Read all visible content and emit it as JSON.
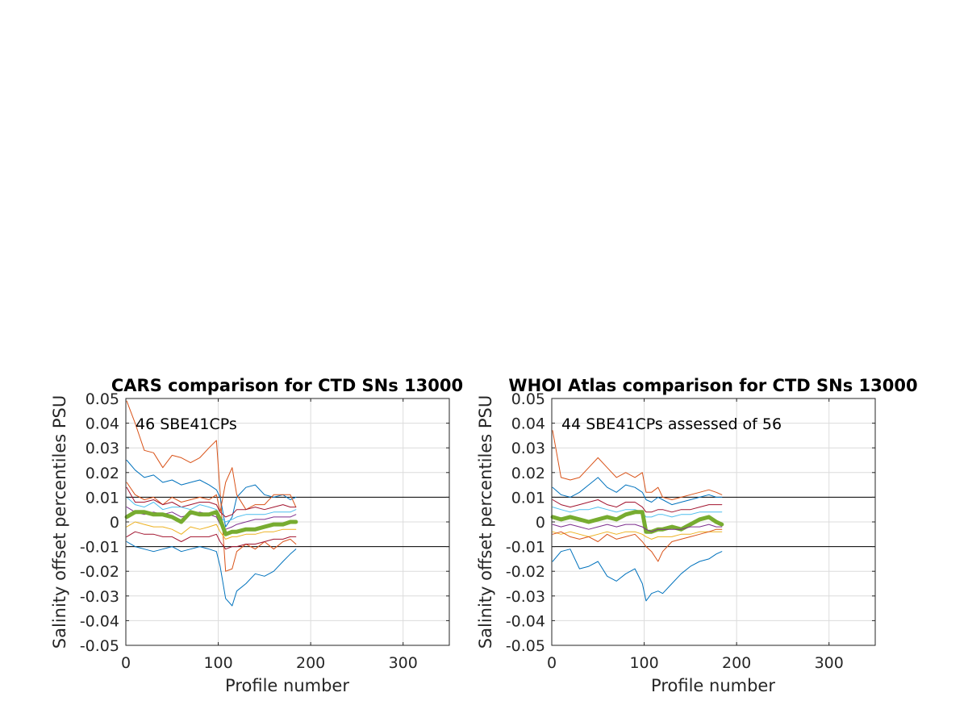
{
  "colors": {
    "blue": "#0072BD",
    "orange": "#D95319",
    "yellow": "#EDB120",
    "purple": "#7E2F8E",
    "green": "#77AC30",
    "cyan": "#4DBEEE",
    "maroon": "#A2142F",
    "reference": "#000000"
  },
  "chart_data": [
    {
      "type": "line",
      "title": "CARS comparison for CTD SNs 13000",
      "xlabel": "Profile number",
      "ylabel": "Salinity offset percentiles PSU",
      "annotation": "46 SBE41CPs",
      "xlim": [
        0,
        350
      ],
      "ylim": [
        -0.05,
        0.05
      ],
      "xticks": [
        0,
        100,
        200,
        300
      ],
      "yticks": [
        -0.05,
        -0.04,
        -0.03,
        -0.02,
        -0.01,
        0,
        0.01,
        0.02,
        0.03,
        0.04,
        0.05
      ],
      "ytick_labels": [
        "-0.05",
        "-0.04",
        "-0.03",
        "-0.02",
        "-0.01",
        "0",
        "0.01",
        "0.02",
        "0.03",
        "0.04",
        "0.05"
      ],
      "grid": true,
      "reference_lines": [
        0.01,
        -0.01
      ],
      "x": [
        1,
        10,
        20,
        30,
        40,
        50,
        60,
        70,
        80,
        90,
        98,
        102,
        108,
        115,
        120,
        130,
        140,
        150,
        160,
        170,
        178,
        184
      ],
      "series": [
        {
          "color": "orange",
          "width": 1,
          "values": [
            0.049,
            0.04,
            0.029,
            0.028,
            0.022,
            0.027,
            0.026,
            0.024,
            0.026,
            0.03,
            0.033,
            0.012,
            -0.02,
            -0.019,
            -0.012,
            -0.009,
            -0.011,
            -0.008,
            -0.011,
            -0.008,
            -0.007,
            -0.009
          ]
        },
        {
          "color": "blue",
          "width": 1,
          "values": [
            0.025,
            0.021,
            0.018,
            0.019,
            0.016,
            0.017,
            0.015,
            0.016,
            0.017,
            0.015,
            0.013,
            0.01,
            -0.002,
            0.002,
            0.01,
            0.014,
            0.015,
            0.011,
            0.01,
            0.011,
            0.009,
            0.01
          ]
        },
        {
          "color": "orange",
          "width": 1,
          "values": [
            0.016,
            0.011,
            0.009,
            0.01,
            0.007,
            0.01,
            0.008,
            0.009,
            0.01,
            0.009,
            0.011,
            0.004,
            0.016,
            0.022,
            0.011,
            0.005,
            0.007,
            0.007,
            0.011,
            0.011,
            0.011,
            0.006
          ]
        },
        {
          "color": "maroon",
          "width": 1,
          "values": [
            0.014,
            0.008,
            0.008,
            0.009,
            0.007,
            0.008,
            0.006,
            0.007,
            0.008,
            0.008,
            0.007,
            0.004,
            0.002,
            0.003,
            0.005,
            0.005,
            0.006,
            0.005,
            0.006,
            0.007,
            0.006,
            0.006
          ]
        },
        {
          "color": "cyan",
          "width": 1,
          "values": [
            0.01,
            0.007,
            0.006,
            0.008,
            0.005,
            0.006,
            0.006,
            0.005,
            0.007,
            0.006,
            0.005,
            0.002,
            0.0,
            0.001,
            0.002,
            0.003,
            0.003,
            0.003,
            0.004,
            0.004,
            0.004,
            0.005
          ]
        },
        {
          "color": "purple",
          "width": 1,
          "values": [
            0.006,
            0.004,
            0.003,
            0.004,
            0.003,
            0.004,
            0.002,
            0.003,
            0.004,
            0.003,
            0.002,
            -0.001,
            -0.003,
            -0.002,
            -0.001,
            0.0,
            0.001,
            0.001,
            0.002,
            0.002,
            0.002,
            0.003
          ]
        },
        {
          "color": "green",
          "width": 5,
          "values": [
            0.002,
            0.004,
            0.004,
            0.003,
            0.003,
            0.002,
            0.0,
            0.004,
            0.003,
            0.003,
            0.004,
            0.001,
            -0.005,
            -0.004,
            -0.004,
            -0.003,
            -0.003,
            -0.002,
            -0.001,
            -0.001,
            0.0,
            0.0
          ]
        },
        {
          "color": "yellow",
          "width": 1,
          "values": [
            -0.002,
            0.0,
            -0.001,
            -0.002,
            -0.002,
            -0.003,
            -0.005,
            -0.002,
            -0.003,
            -0.002,
            -0.001,
            -0.004,
            -0.007,
            -0.006,
            -0.006,
            -0.005,
            -0.005,
            -0.004,
            -0.004,
            -0.003,
            -0.003,
            -0.003
          ]
        },
        {
          "color": "maroon",
          "width": 1,
          "values": [
            -0.006,
            -0.004,
            -0.005,
            -0.005,
            -0.006,
            -0.006,
            -0.008,
            -0.006,
            -0.006,
            -0.006,
            -0.005,
            -0.008,
            -0.011,
            -0.01,
            -0.01,
            -0.009,
            -0.009,
            -0.008,
            -0.007,
            -0.007,
            -0.006,
            -0.006
          ]
        },
        {
          "color": "blue",
          "width": 1,
          "values": [
            -0.008,
            -0.01,
            -0.011,
            -0.012,
            -0.011,
            -0.01,
            -0.012,
            -0.011,
            -0.01,
            -0.011,
            -0.012,
            -0.018,
            -0.031,
            -0.034,
            -0.028,
            -0.025,
            -0.021,
            -0.022,
            -0.02,
            -0.016,
            -0.013,
            -0.011
          ]
        }
      ]
    },
    {
      "type": "line",
      "title": "WHOI Atlas comparison for CTD SNs 13000",
      "xlabel": "Profile number",
      "ylabel": "Salinity offset percentiles PSU",
      "annotation": "44 SBE41CPs assessed of 56",
      "xlim": [
        0,
        350
      ],
      "ylim": [
        -0.05,
        0.05
      ],
      "xticks": [
        0,
        100,
        200,
        300
      ],
      "yticks": [
        -0.05,
        -0.04,
        -0.03,
        -0.02,
        -0.01,
        0,
        0.01,
        0.02,
        0.03,
        0.04,
        0.05
      ],
      "ytick_labels": [
        "-0.05",
        "-0.04",
        "-0.03",
        "-0.02",
        "-0.01",
        "0",
        "0.01",
        "0.02",
        "0.03",
        "0.04",
        "0.05"
      ],
      "grid": true,
      "reference_lines": [
        0.01,
        -0.01
      ],
      "x": [
        1,
        10,
        20,
        30,
        40,
        50,
        60,
        70,
        80,
        90,
        98,
        102,
        108,
        115,
        120,
        130,
        140,
        150,
        160,
        170,
        178,
        184
      ],
      "series": [
        {
          "color": "orange",
          "width": 1,
          "values": [
            0.037,
            0.018,
            0.017,
            0.018,
            0.022,
            0.026,
            0.022,
            0.018,
            0.02,
            0.018,
            0.02,
            0.012,
            0.012,
            0.014,
            0.01,
            0.009,
            0.01,
            0.011,
            0.012,
            0.013,
            0.012,
            0.011
          ]
        },
        {
          "color": "blue",
          "width": 1,
          "values": [
            0.014,
            0.011,
            0.01,
            0.012,
            0.015,
            0.018,
            0.014,
            0.012,
            0.015,
            0.014,
            0.012,
            0.009,
            0.008,
            0.01,
            0.009,
            0.007,
            0.008,
            0.009,
            0.01,
            0.011,
            0.01,
            0.01
          ]
        },
        {
          "color": "maroon",
          "width": 1,
          "values": [
            0.009,
            0.007,
            0.006,
            0.007,
            0.008,
            0.009,
            0.007,
            0.006,
            0.008,
            0.008,
            0.006,
            0.004,
            0.004,
            0.005,
            0.005,
            0.004,
            0.005,
            0.005,
            0.006,
            0.007,
            0.007,
            0.007
          ]
        },
        {
          "color": "cyan",
          "width": 1,
          "values": [
            0.006,
            0.005,
            0.004,
            0.005,
            0.005,
            0.006,
            0.005,
            0.004,
            0.005,
            0.005,
            0.004,
            0.002,
            0.002,
            0.003,
            0.003,
            0.002,
            0.003,
            0.003,
            0.004,
            0.004,
            0.004,
            0.004
          ]
        },
        {
          "color": "green",
          "width": 5,
          "values": [
            0.002,
            0.001,
            0.002,
            0.001,
            0.0,
            0.001,
            0.002,
            0.001,
            0.003,
            0.004,
            0.004,
            -0.004,
            -0.004,
            -0.003,
            -0.003,
            -0.002,
            -0.003,
            -0.001,
            0.001,
            0.002,
            0.0,
            -0.001
          ]
        },
        {
          "color": "purple",
          "width": 1,
          "values": [
            -0.001,
            -0.002,
            -0.001,
            -0.002,
            -0.003,
            -0.002,
            -0.001,
            -0.002,
            -0.001,
            -0.001,
            -0.002,
            -0.003,
            -0.004,
            -0.003,
            -0.003,
            -0.003,
            -0.003,
            -0.002,
            -0.002,
            -0.001,
            -0.002,
            -0.002
          ]
        },
        {
          "color": "yellow",
          "width": 1,
          "values": [
            -0.004,
            -0.005,
            -0.004,
            -0.005,
            -0.006,
            -0.005,
            -0.004,
            -0.005,
            -0.004,
            -0.004,
            -0.005,
            -0.006,
            -0.007,
            -0.006,
            -0.006,
            -0.006,
            -0.005,
            -0.005,
            -0.004,
            -0.004,
            -0.004,
            -0.004
          ]
        },
        {
          "color": "orange",
          "width": 1,
          "values": [
            -0.005,
            -0.004,
            -0.006,
            -0.007,
            -0.006,
            -0.008,
            -0.005,
            -0.007,
            -0.006,
            -0.005,
            -0.008,
            -0.01,
            -0.012,
            -0.016,
            -0.012,
            -0.008,
            -0.007,
            -0.006,
            -0.005,
            -0.004,
            -0.003,
            -0.003
          ]
        },
        {
          "color": "blue",
          "width": 1,
          "values": [
            -0.016,
            -0.012,
            -0.011,
            -0.019,
            -0.018,
            -0.016,
            -0.022,
            -0.024,
            -0.021,
            -0.019,
            -0.025,
            -0.032,
            -0.029,
            -0.028,
            -0.029,
            -0.025,
            -0.021,
            -0.018,
            -0.016,
            -0.015,
            -0.013,
            -0.012
          ]
        }
      ]
    }
  ]
}
